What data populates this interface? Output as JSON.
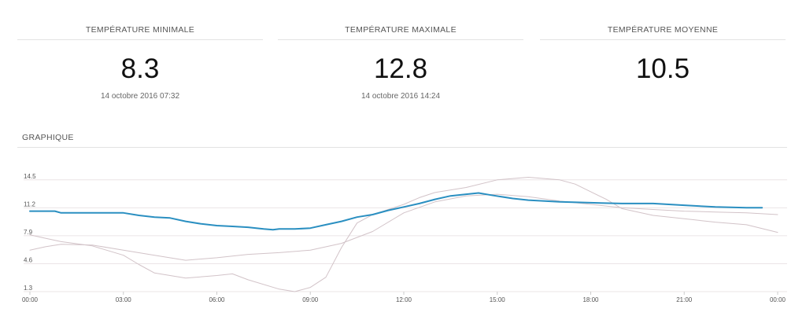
{
  "stats": {
    "min": {
      "title": "TEMPÉRATURE MINIMALE",
      "value": "8.3",
      "date": "14 octobre 2016 07:32"
    },
    "max": {
      "title": "TEMPÉRATURE MAXIMALE",
      "value": "12.8",
      "date": "14 octobre 2016 14:24"
    },
    "avg": {
      "title": "TEMPÉRATURE MOYENNE",
      "value": "10.5"
    }
  },
  "section_title": "GRAPHIQUE",
  "colors": {
    "main_series": "#2a8fc1",
    "reference_series": "#d2c3c8",
    "grid": "#ebe4e6",
    "axis": "#cccccc"
  },
  "chart_data": {
    "type": "line",
    "x_unit": "hour",
    "xlim": [
      0,
      24
    ],
    "ylim": [
      1.3,
      15.5
    ],
    "grid": true,
    "y_ticks": [
      {
        "value": 14.5,
        "label": "14.5"
      },
      {
        "value": 11.2,
        "label": "11.2"
      },
      {
        "value": 7.9,
        "label": "7.9"
      },
      {
        "value": 4.6,
        "label": "4.6"
      },
      {
        "value": 1.3,
        "label": "1.3"
      }
    ],
    "x_ticks": [
      {
        "value": 0,
        "label": "00:00"
      },
      {
        "value": 3,
        "label": "03:00"
      },
      {
        "value": 6,
        "label": "06:00"
      },
      {
        "value": 9,
        "label": "09:00"
      },
      {
        "value": 12,
        "label": "12:00"
      },
      {
        "value": 15,
        "label": "15:00"
      },
      {
        "value": 18,
        "label": "18:00"
      },
      {
        "value": 21,
        "label": "21:00"
      },
      {
        "value": 24,
        "label": "00:00"
      }
    ],
    "series": [
      {
        "role": "main",
        "points": [
          [
            0,
            10.8
          ],
          [
            0.8,
            10.8
          ],
          [
            1,
            10.6
          ],
          [
            2,
            10.6
          ],
          [
            3,
            10.6
          ],
          [
            3.5,
            10.3
          ],
          [
            4,
            10.1
          ],
          [
            4.5,
            10.0
          ],
          [
            5,
            9.6
          ],
          [
            5.5,
            9.3
          ],
          [
            6,
            9.1
          ],
          [
            6.5,
            9.0
          ],
          [
            7,
            8.9
          ],
          [
            7.5,
            8.7
          ],
          [
            7.8,
            8.6
          ],
          [
            8,
            8.7
          ],
          [
            8.5,
            8.7
          ],
          [
            9,
            8.8
          ],
          [
            9.5,
            9.2
          ],
          [
            10,
            9.6
          ],
          [
            10.5,
            10.1
          ],
          [
            11,
            10.4
          ],
          [
            11.5,
            10.9
          ],
          [
            12,
            11.3
          ],
          [
            12.5,
            11.7
          ],
          [
            13,
            12.2
          ],
          [
            13.5,
            12.6
          ],
          [
            14,
            12.8
          ],
          [
            14.4,
            12.95
          ],
          [
            14.8,
            12.7
          ],
          [
            15.5,
            12.3
          ],
          [
            16,
            12.1
          ],
          [
            17,
            11.9
          ],
          [
            18,
            11.8
          ],
          [
            19,
            11.7
          ],
          [
            20,
            11.7
          ],
          [
            20.5,
            11.6
          ],
          [
            21,
            11.5
          ],
          [
            22,
            11.3
          ],
          [
            23,
            11.2
          ],
          [
            23.5,
            11.2
          ]
        ]
      },
      {
        "role": "reference",
        "points": [
          [
            0,
            8.0
          ],
          [
            0.5,
            7.6
          ],
          [
            1,
            7.2
          ],
          [
            2,
            6.7
          ],
          [
            3,
            5.6
          ],
          [
            3.5,
            4.5
          ],
          [
            4,
            3.5
          ],
          [
            5,
            2.9
          ],
          [
            6,
            3.2
          ],
          [
            6.5,
            3.4
          ],
          [
            7,
            2.7
          ],
          [
            8,
            1.6
          ],
          [
            8.5,
            1.3
          ],
          [
            9,
            1.8
          ],
          [
            9.5,
            3.0
          ],
          [
            10,
            6.5
          ],
          [
            10.5,
            9.4
          ],
          [
            11,
            10.4
          ],
          [
            12,
            11.6
          ],
          [
            12.5,
            12.4
          ],
          [
            13,
            13.0
          ],
          [
            14,
            13.6
          ],
          [
            15,
            14.5
          ],
          [
            16,
            14.8
          ],
          [
            17,
            14.5
          ],
          [
            17.5,
            14.0
          ],
          [
            18,
            13.1
          ],
          [
            18.5,
            12.2
          ],
          [
            19,
            11.1
          ],
          [
            20,
            10.3
          ],
          [
            21,
            9.9
          ],
          [
            22,
            9.5
          ],
          [
            23,
            9.2
          ],
          [
            24,
            8.3
          ]
        ]
      },
      {
        "role": "reference",
        "points": [
          [
            0,
            6.2
          ],
          [
            0.5,
            6.6
          ],
          [
            1,
            6.9
          ],
          [
            2,
            6.8
          ],
          [
            3,
            6.2
          ],
          [
            4,
            5.6
          ],
          [
            5,
            5.0
          ],
          [
            6,
            5.3
          ],
          [
            7,
            5.7
          ],
          [
            8,
            5.9
          ],
          [
            9,
            6.2
          ],
          [
            10,
            7.0
          ],
          [
            11,
            8.4
          ],
          [
            12,
            10.6
          ],
          [
            13,
            11.9
          ],
          [
            14,
            12.6
          ],
          [
            15,
            12.8
          ],
          [
            16,
            12.5
          ],
          [
            17,
            12.0
          ],
          [
            18,
            11.6
          ],
          [
            19,
            11.2
          ],
          [
            20,
            11.0
          ],
          [
            21,
            10.8
          ],
          [
            22,
            10.7
          ],
          [
            23,
            10.6
          ],
          [
            24,
            10.4
          ]
        ]
      }
    ]
  }
}
